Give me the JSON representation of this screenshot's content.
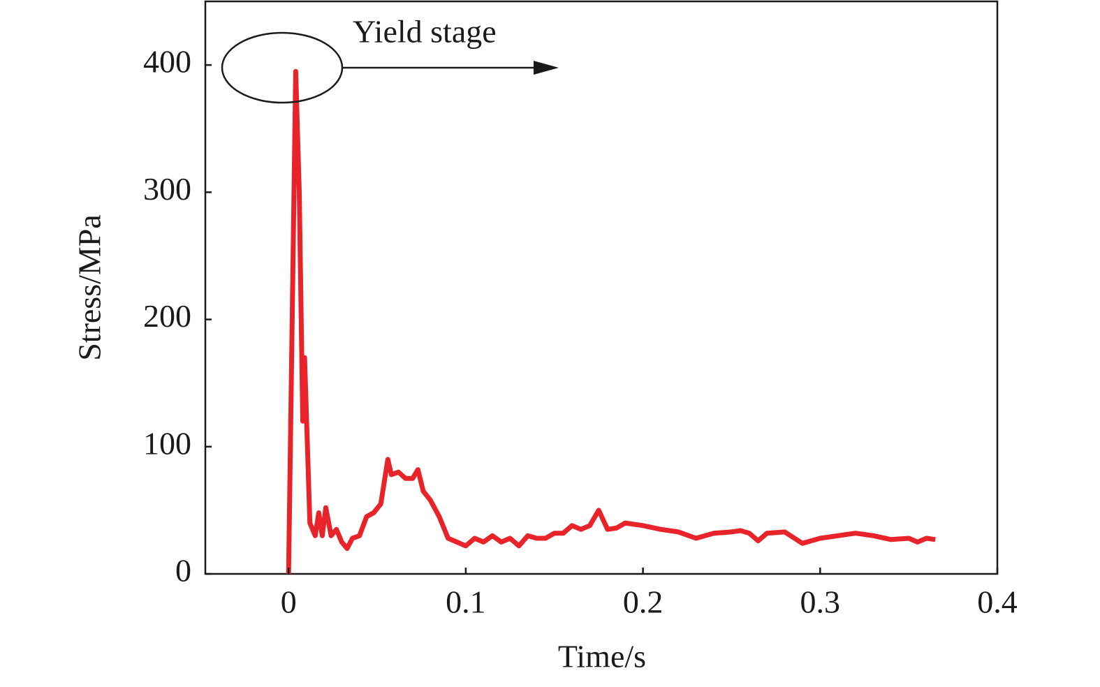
{
  "chart_data": {
    "type": "line",
    "xlabel": "Time/s",
    "ylabel": "Stress/MPa",
    "annotation": "Yield stage",
    "xlim": [
      -0.047,
      0.4
    ],
    "ylim": [
      0,
      450
    ],
    "xticks": [
      0,
      0.1,
      0.2,
      0.3,
      0.4
    ],
    "yticks": [
      0,
      100,
      200,
      300,
      400
    ],
    "series": [
      {
        "color": "#e8242a",
        "x": [
          0.0,
          0.004,
          0.006,
          0.008,
          0.009,
          0.012,
          0.015,
          0.017,
          0.019,
          0.021,
          0.024,
          0.027,
          0.03,
          0.033,
          0.036,
          0.04,
          0.044,
          0.048,
          0.052,
          0.056,
          0.058,
          0.062,
          0.066,
          0.07,
          0.073,
          0.076,
          0.08,
          0.085,
          0.09,
          0.095,
          0.1,
          0.105,
          0.11,
          0.115,
          0.12,
          0.125,
          0.13,
          0.135,
          0.14,
          0.145,
          0.15,
          0.155,
          0.16,
          0.165,
          0.17,
          0.175,
          0.18,
          0.185,
          0.19,
          0.2,
          0.21,
          0.22,
          0.23,
          0.24,
          0.25,
          0.255,
          0.26,
          0.265,
          0.27,
          0.28,
          0.29,
          0.3,
          0.31,
          0.32,
          0.33,
          0.34,
          0.35,
          0.355,
          0.36,
          0.365
        ],
        "values": [
          0,
          395,
          300,
          120,
          170,
          40,
          30,
          48,
          30,
          52,
          30,
          35,
          25,
          20,
          28,
          30,
          45,
          48,
          55,
          90,
          78,
          80,
          75,
          75,
          82,
          65,
          58,
          45,
          28,
          25,
          22,
          28,
          25,
          30,
          25,
          28,
          22,
          30,
          28,
          28,
          32,
          32,
          38,
          35,
          38,
          50,
          35,
          36,
          40,
          38,
          35,
          33,
          28,
          32,
          33,
          34,
          32,
          26,
          32,
          33,
          24,
          28,
          30,
          32,
          30,
          27,
          28,
          25,
          28,
          27
        ]
      }
    ]
  }
}
